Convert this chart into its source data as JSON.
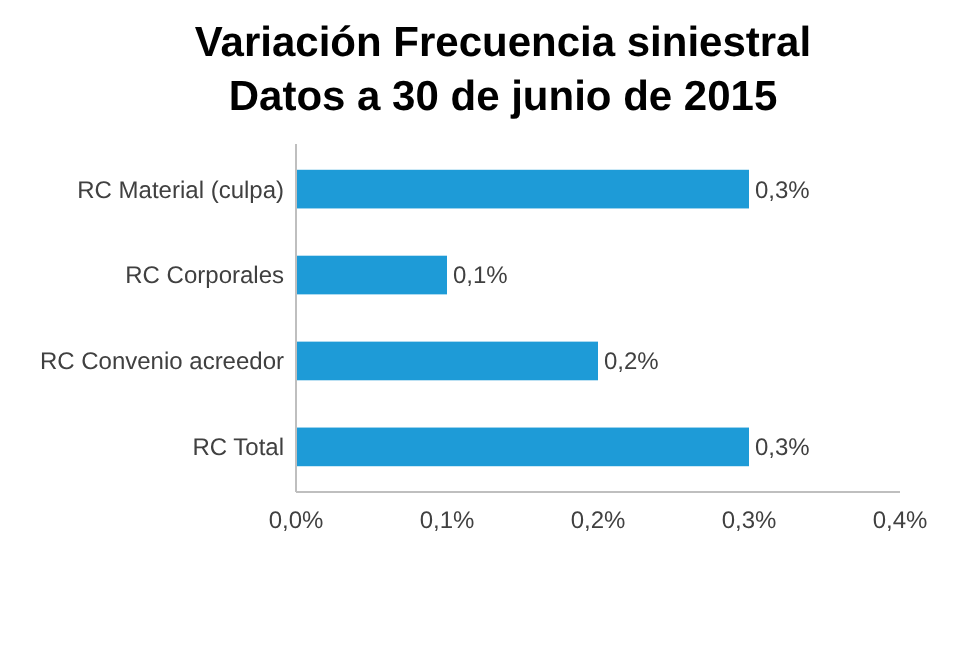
{
  "chart_data": {
    "type": "bar",
    "orientation": "horizontal",
    "title": "Variación Frecuencia siniestral\nDatos a 30 de junio de 2015",
    "categories": [
      "RC Material (culpa)",
      "RC Corporales",
      "RC Convenio acreedor",
      "RC Total"
    ],
    "values": [
      0.3,
      0.1,
      0.2,
      0.3
    ],
    "color": "#1e9bd7",
    "value_labels": [
      "0,3%",
      "0,1%",
      "0,2%",
      "0,3%"
    ],
    "xlim": [
      0,
      0.4
    ],
    "xticks": [
      {
        "value": 0,
        "label": "0,0%"
      },
      {
        "value": 0.1,
        "label": "0,1%"
      },
      {
        "value": 0.2,
        "label": "0,2%"
      },
      {
        "value": 0.3,
        "label": "0,3%"
      },
      {
        "value": 0.4,
        "label": "0,4%"
      }
    ],
    "grid": false
  }
}
